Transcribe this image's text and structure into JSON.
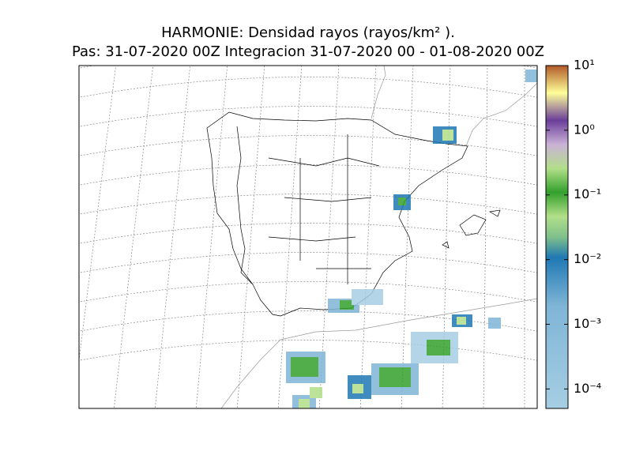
{
  "map": {
    "title": [
      "HARMONIE: Densidad rayos  (rayos/km² ).",
      "Pas: 31-07-2020 00Z Integracion 31-07-2020 00 - 01-08-2020 00Z"
    ]
  },
  "colorbar": {
    "scale": "log",
    "lim": [
      5e-05,
      10
    ],
    "ticks": [
      {
        "value": 0.0001,
        "label": "10⁻⁴"
      },
      {
        "value": 0.001,
        "label": "10⁻³"
      },
      {
        "value": 0.01,
        "label": "10⁻²"
      },
      {
        "value": 0.1,
        "label": "10⁻¹"
      },
      {
        "value": 1,
        "label": "10⁰"
      },
      {
        "value": 10,
        "label": "10¹"
      }
    ]
  }
}
